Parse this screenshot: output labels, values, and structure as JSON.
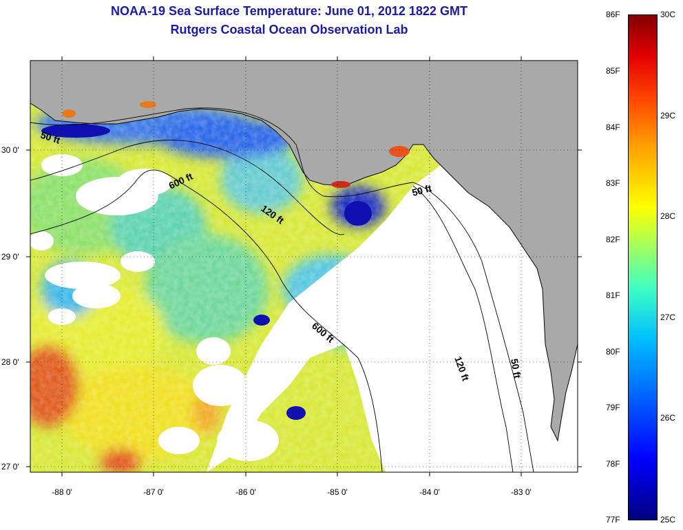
{
  "title": {
    "line1": "NOAA-19 Sea Surface Temperature:  June 01, 2012 1822 GMT",
    "line2": "Rutgers Coastal Ocean Observation Lab"
  },
  "map": {
    "x_ticks": [
      "-88 0'",
      "-87 0'",
      "-86 0'",
      "-85 0'",
      "-84 0'",
      "-83 0'"
    ],
    "y_ticks": [
      "30 0'",
      "29 0'",
      "28 0'",
      "27 0'"
    ],
    "contours": [
      "50 ft",
      "600 ft",
      "120 ft",
      "50 ft",
      "600 ft",
      "120 ft",
      "50 ft"
    ]
  },
  "colorbar": {
    "f_labels": [
      "86F",
      "85F",
      "84F",
      "83F",
      "82F",
      "81F",
      "80F",
      "79F",
      "78F",
      "77F"
    ],
    "c_labels": [
      "30C",
      "29C",
      "28C",
      "27C",
      "26C",
      "25C"
    ]
  },
  "colors": {
    "land": "#a9a9a9",
    "cloud": "#ffffff",
    "title": "#1a1aa6"
  }
}
